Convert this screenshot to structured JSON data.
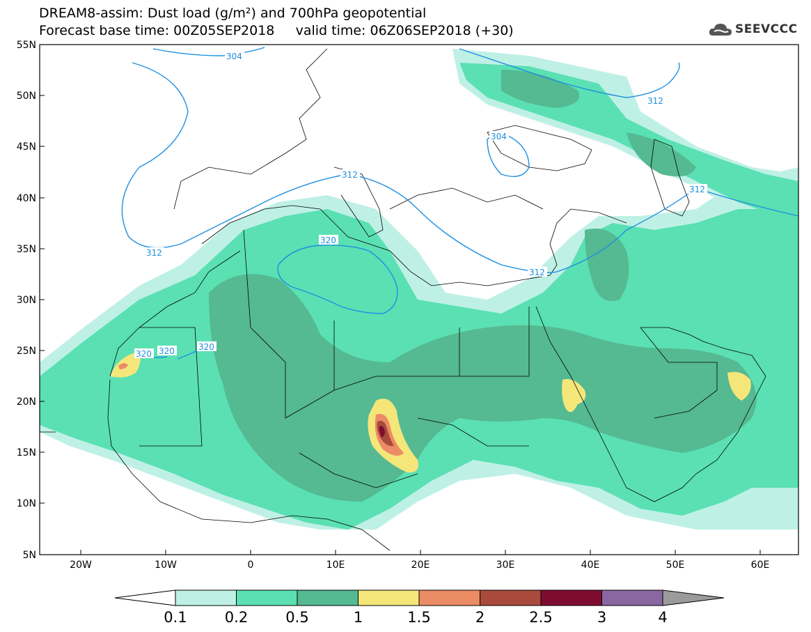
{
  "title": {
    "line1": "DREAM8-assim: Dust load (g/m²) and 700hPa geopotential",
    "line2": "Forecast base time: 00Z05SEP2018     valid time: 06Z06SEP2018 (+30)"
  },
  "logo": {
    "icon": "cloud-icon",
    "text": "SEEVCCC"
  },
  "axes": {
    "lat_labels": [
      "55N",
      "50N",
      "45N",
      "40N",
      "35N",
      "30N",
      "25N",
      "20N",
      "15N",
      "10N",
      "5N"
    ],
    "lon_labels": [
      "20W",
      "10W",
      "0",
      "10E",
      "20E",
      "30E",
      "40E",
      "50E",
      "60E"
    ]
  },
  "colorbar": {
    "labels": [
      "0.1",
      "0.2",
      "0.5",
      "1",
      "1.5",
      "2",
      "2.5",
      "3",
      "4"
    ],
    "colors": [
      "#bff0e6",
      "#5ae0b3",
      "#55b991",
      "#f5e67a",
      "#ec8c64",
      "#a84b3c",
      "#7e0c30",
      "#8a67a1",
      "#9b9b9b"
    ]
  },
  "contour_labels": [
    "304",
    "312",
    "312",
    "312",
    "312",
    "312",
    "320",
    "320",
    "320",
    "320",
    "304"
  ]
}
